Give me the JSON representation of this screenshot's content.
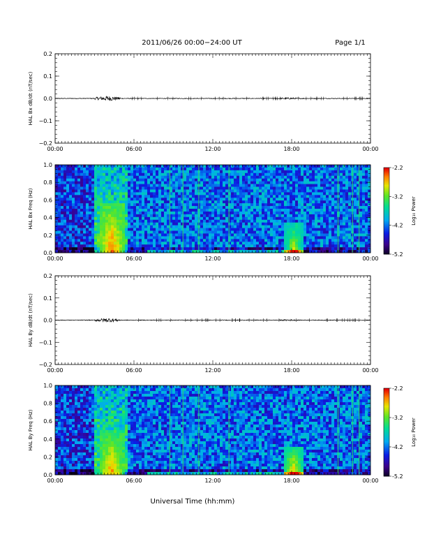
{
  "header": {
    "title": "2011/06/26  00:00−24:00 UT",
    "page": "Page 1/1"
  },
  "xaxis": {
    "label": "Universal Time (hh:mm)",
    "tick_labels": [
      "00:00",
      "06:00",
      "12:00",
      "18:00",
      "00:00"
    ],
    "range_hours": [
      0,
      24
    ]
  },
  "colorbar": {
    "label": "Log₁₀ Power",
    "tick_labels": [
      "-2.2",
      "-3.2",
      "-4.2",
      "-5.2"
    ],
    "range": [
      -5.2,
      -2.2
    ]
  },
  "chart_data": [
    {
      "type": "line",
      "ylabel": "HAL Bx dB/dt (nT/sec)",
      "ylim": [
        -0.2,
        0.2
      ],
      "ytick_labels": [
        "0.2",
        "0.1",
        "0.0",
        "−0.1",
        "−0.2"
      ],
      "baseline": 0.0,
      "activity": [
        {
          "start_hour": 3.0,
          "end_hour": 5.0,
          "amplitude": 0.012
        },
        {
          "start_hour": 16.5,
          "end_hour": 19.0,
          "amplitude": 0.004
        }
      ]
    },
    {
      "type": "heatmap",
      "ylabel": "HAL Bx Freq (Hz)",
      "ylim": [
        0,
        1.0
      ],
      "ytick_labels": [
        "1.0",
        "0.8",
        "0.6",
        "0.4",
        "0.2",
        "0.0"
      ],
      "color_scale_range": [
        -5.2,
        -2.2
      ],
      "enhanced_regions": [
        {
          "start_hour": 3.3,
          "end_hour": 5.3,
          "freq_max_hz": 0.55,
          "peak_log_power": -2.4
        },
        {
          "start_hour": 17.5,
          "end_hour": 18.8,
          "freq_max_hz": 0.35,
          "peak_log_power": -2.8
        }
      ]
    },
    {
      "type": "line",
      "ylabel": "HAL By dB/dt (nT/sec)",
      "ylim": [
        -0.2,
        0.2
      ],
      "ytick_labels": [
        "0.2",
        "0.1",
        "0.0",
        "−0.1",
        "−0.2"
      ],
      "baseline": 0.0,
      "activity": [
        {
          "start_hour": 3.0,
          "end_hour": 5.0,
          "amplitude": 0.01
        },
        {
          "start_hour": 17.0,
          "end_hour": 18.5,
          "amplitude": 0.004
        }
      ]
    },
    {
      "type": "heatmap",
      "ylabel": "HAL By Freq (Hz)",
      "ylim": [
        0,
        1.0
      ],
      "ytick_labels": [
        "1.0",
        "0.8",
        "0.6",
        "0.4",
        "0.2",
        "0.0"
      ],
      "color_scale_range": [
        -5.2,
        -2.2
      ],
      "enhanced_regions": [
        {
          "start_hour": 3.3,
          "end_hour": 5.3,
          "freq_max_hz": 0.5,
          "peak_log_power": -2.5
        },
        {
          "start_hour": 17.5,
          "end_hour": 18.8,
          "freq_max_hz": 0.3,
          "peak_log_power": -2.6
        }
      ]
    }
  ]
}
